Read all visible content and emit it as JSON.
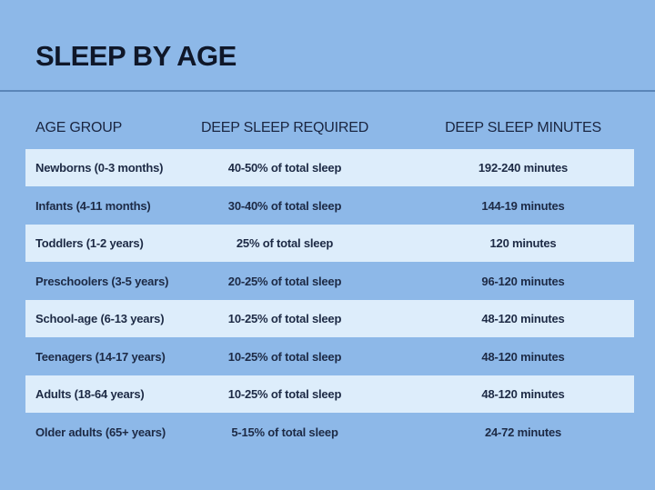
{
  "title": "SLEEP BY AGE",
  "columns": [
    "AGE GROUP",
    "DEEP SLEEP REQUIRED",
    "DEEP SLEEP MINUTES"
  ],
  "rows": [
    [
      "Newborns (0-3 months)",
      "40-50% of total sleep",
      "192-240 minutes"
    ],
    [
      "Infants (4-11 months)",
      "30-40% of total sleep",
      "144-19 minutes"
    ],
    [
      "Toddlers (1-2 years)",
      "25% of total sleep",
      "120 minutes"
    ],
    [
      "Preschoolers (3-5 years)",
      "20-25% of total sleep",
      "96-120 minutes"
    ],
    [
      "School-age (6-13 years)",
      "10-25% of total sleep",
      "48-120 minutes"
    ],
    [
      "Teenagers (14-17 years)",
      "10-25% of total sleep",
      "48-120 minutes"
    ],
    [
      "Adults (18-64 years)",
      "10-25% of total sleep",
      "48-120 minutes"
    ],
    [
      "Older adults (65+ years)",
      "5-15% of total sleep",
      "24-72 minutes"
    ]
  ],
  "colors": {
    "background": "#8db8e8",
    "row_highlight": "#ddedfb",
    "divider": "#5a85b8",
    "text": "#17213a"
  }
}
